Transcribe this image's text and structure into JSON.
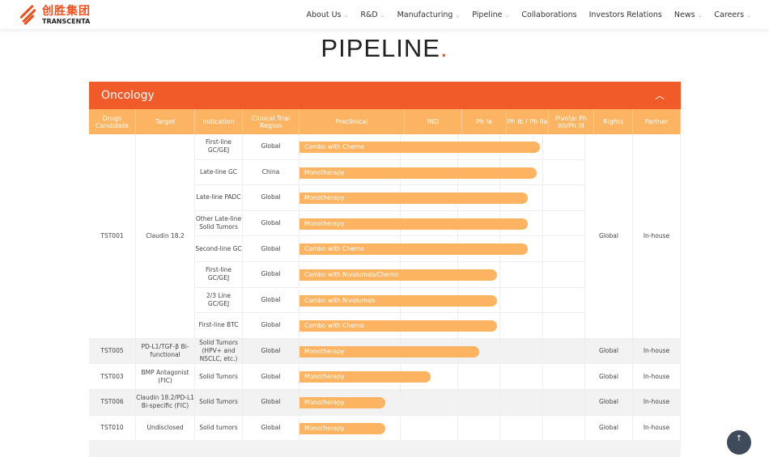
{
  "header": {
    "logo_cn": "创胜集团",
    "logo_en": "TRANSCENTA",
    "nav": [
      {
        "label": "About Us",
        "dropdown": true
      },
      {
        "label": "R&D",
        "dropdown": true
      },
      {
        "label": "Manufacturing",
        "dropdown": true
      },
      {
        "label": "Pipeline",
        "dropdown": true
      },
      {
        "label": "Collaborations",
        "dropdown": false
      },
      {
        "label": "Investors Relations",
        "dropdown": false
      },
      {
        "label": "News",
        "dropdown": true
      },
      {
        "label": "Careers",
        "dropdown": true
      }
    ]
  },
  "page_title": "PIPELINE",
  "section": {
    "title": "Oncology",
    "expanded": true
  },
  "columns": [
    "Drugs Candidate",
    "Target",
    "Indication",
    "Clinical Trial Region",
    "Preclinical",
    "IND",
    "Ph Ia",
    "Ph Ib / Ph IIa",
    "Pivotal Ph IIb/Ph III",
    "Rights",
    "Partner"
  ],
  "colors": {
    "accent": "#f15a29",
    "bar": "#fdb462"
  },
  "groups": [
    {
      "drug": "TST001",
      "target": "Claudin 18.2",
      "rights": "Global",
      "partner": "In-house",
      "shaded": false,
      "rows": [
        {
          "indication": "First-line GC/GEJ",
          "region": "Global",
          "label": "Combo with Chemo",
          "progress": 0.84
        },
        {
          "indication": "Late-line GC",
          "region": "China",
          "label": "Monotherapy",
          "progress": 0.83
        },
        {
          "indication": "Late-line PADC",
          "region": "Global",
          "label": "Monotherapy",
          "progress": 0.8
        },
        {
          "indication": "Other Late-line Solid Tumors",
          "region": "Global",
          "label": "Monotherapy",
          "progress": 0.8
        },
        {
          "indication": "Second-line GC",
          "region": "Global",
          "label": "Combo with Chemo",
          "progress": 0.8
        },
        {
          "indication": "First-line GC/GEJ",
          "region": "Global",
          "label": "Combo with Nivolumab/Chemo",
          "progress": 0.69
        },
        {
          "indication": "2/3 Line GC/GEJ",
          "region": "Global",
          "label": "Combo with Nivolumab",
          "progress": 0.69
        },
        {
          "indication": "First-line BTC",
          "region": "Global",
          "label": "Combo with Chemo",
          "progress": 0.69
        }
      ]
    },
    {
      "drug": "TST005",
      "target": "PD-L1/TGF-β Bi-functional",
      "rights": "Global",
      "partner": "In-house",
      "shaded": true,
      "rows": [
        {
          "indication": "Solid Tumors (HPV+ and NSCLC, etc.)",
          "region": "Global",
          "label": "Monotherapy",
          "progress": 0.63
        }
      ]
    },
    {
      "drug": "TST003",
      "target": "BMP Antagonist (FIC)",
      "rights": "Global",
      "partner": "In-house",
      "shaded": false,
      "rows": [
        {
          "indication": "Solid Tumors",
          "region": "Global",
          "label": "Monotherapy",
          "progress": 0.46
        }
      ]
    },
    {
      "drug": "TST006",
      "target": "Claudin 18.2/PD-L1 Bi-specific (FIC)",
      "rights": "Global",
      "partner": "In-house",
      "shaded": true,
      "rows": [
        {
          "indication": "Solid Tumors",
          "region": "Global",
          "label": "Monotherapy",
          "progress": 0.3
        }
      ]
    },
    {
      "drug": "TST010",
      "target": "Undisclosed",
      "rights": "Global",
      "partner": "In-house",
      "shaded": false,
      "rows": [
        {
          "indication": "Solid tumors",
          "region": "Global",
          "label": "Monotherapy",
          "progress": 0.3
        }
      ]
    }
  ],
  "back_to_top": "↑"
}
